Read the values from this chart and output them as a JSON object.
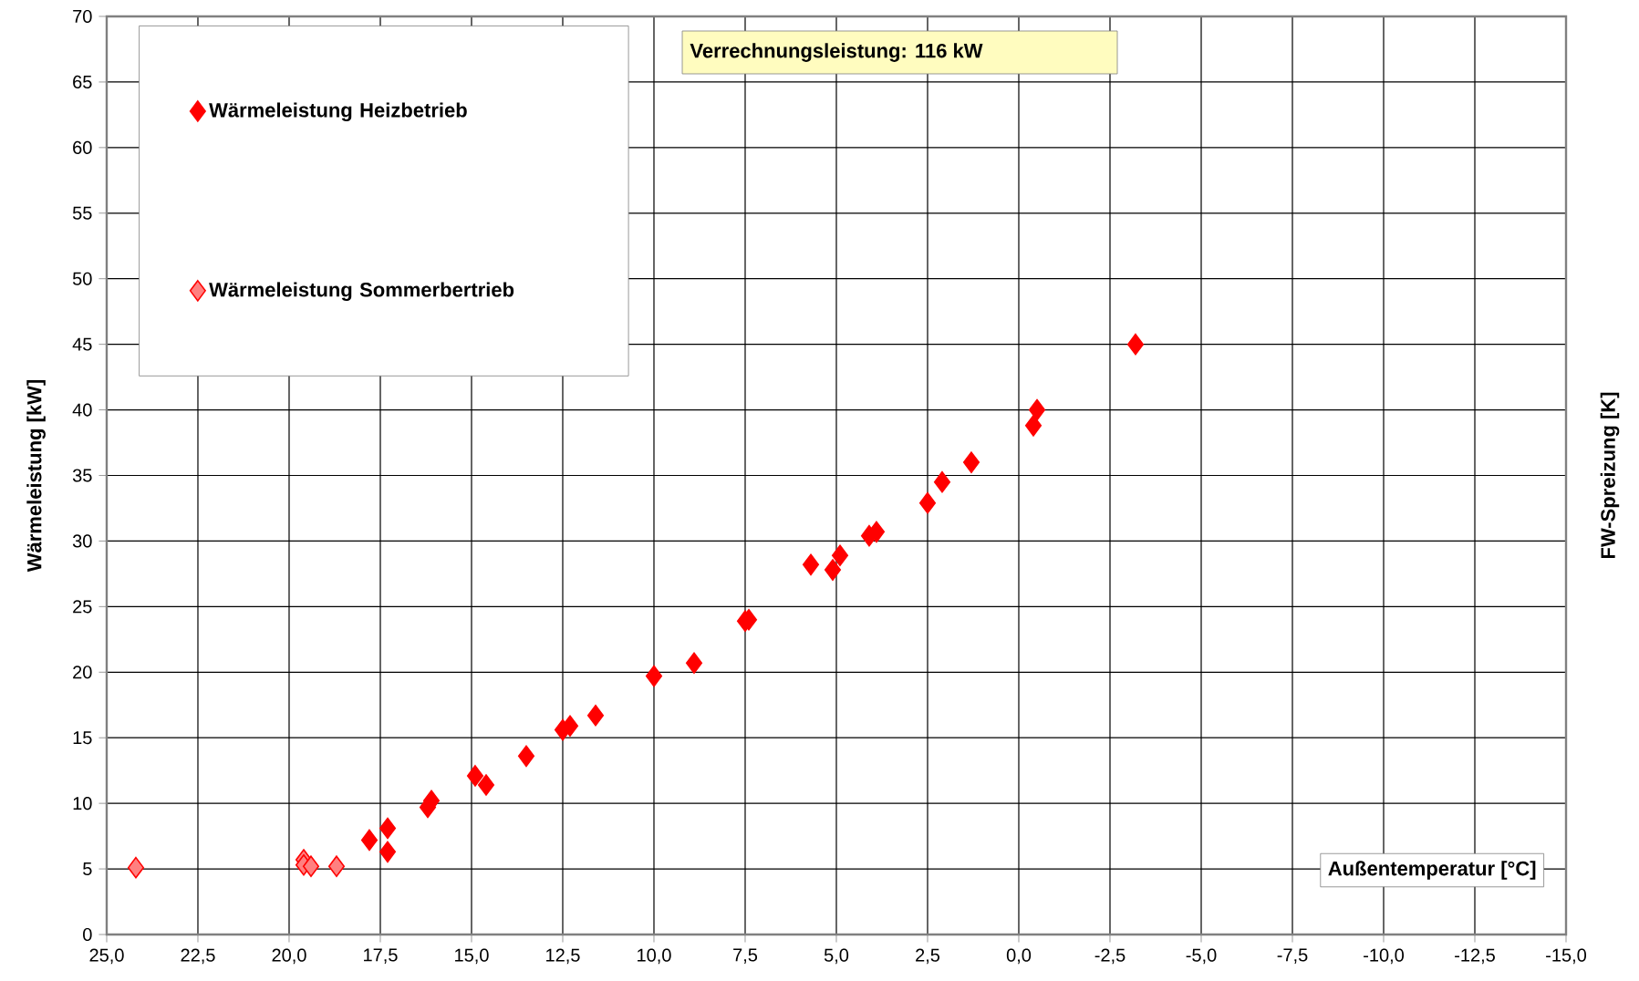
{
  "chart_data": {
    "type": "scatter",
    "xlabel": "Außentemperatur [°C]",
    "ylabel": "Wärmeleistung [kW]",
    "y2label": "FW-Spreizung [K]",
    "annotations": [
      "Verrechnungsleistung:   116 kW"
    ],
    "xlim": [
      25,
      -15
    ],
    "ylim": [
      0,
      70
    ],
    "xticks": [
      {
        "value": 25,
        "label": "25,0"
      },
      {
        "value": 22.5,
        "label": "22,5"
      },
      {
        "value": 20,
        "label": "20,0"
      },
      {
        "value": 17.5,
        "label": "17,5"
      },
      {
        "value": 15,
        "label": "15,0"
      },
      {
        "value": 12.5,
        "label": "12,5"
      },
      {
        "value": 10,
        "label": "10,0"
      },
      {
        "value": 7.5,
        "label": "7,5"
      },
      {
        "value": 5,
        "label": "5,0"
      },
      {
        "value": 2.5,
        "label": "2,5"
      },
      {
        "value": 0,
        "label": "0,0"
      },
      {
        "value": -2.5,
        "label": "-2,5"
      },
      {
        "value": -5,
        "label": "-5,0"
      },
      {
        "value": -7.5,
        "label": "-7,5"
      },
      {
        "value": -10,
        "label": "-10,0"
      },
      {
        "value": -12.5,
        "label": "-12,5"
      },
      {
        "value": -15,
        "label": "-15,0"
      }
    ],
    "yticks": [
      0,
      5,
      10,
      15,
      20,
      25,
      30,
      35,
      40,
      45,
      50,
      55,
      60,
      65,
      70
    ],
    "grid": true,
    "legend": "top left",
    "marker": "diamond",
    "series": [
      {
        "name": "Wärmeleistung Heizbetrieb",
        "color": "#ff0000",
        "x": [
          17.8,
          17.3,
          17.3,
          16.2,
          16.1,
          14.9,
          14.6,
          13.5,
          12.5,
          12.3,
          11.6,
          10.0,
          8.9,
          7.5,
          7.4,
          5.7,
          5.1,
          4.9,
          4.1,
          3.9,
          2.5,
          2.1,
          1.3,
          -0.4,
          -0.5,
          -3.2
        ],
        "values": [
          7.2,
          6.3,
          8.1,
          9.7,
          10.2,
          12.1,
          11.4,
          13.6,
          15.6,
          15.9,
          16.7,
          19.7,
          20.7,
          23.9,
          24.0,
          28.2,
          27.8,
          28.9,
          30.4,
          30.7,
          32.9,
          34.5,
          36.0,
          38.8,
          40.0,
          45.0
        ]
      },
      {
        "name": "Wärmeleistung Sommerbertrieb",
        "color": "#ff8080",
        "x": [
          24.2,
          19.6,
          19.6,
          19.4,
          18.7
        ],
        "values": [
          5.1,
          5.7,
          5.3,
          5.2,
          5.2
        ]
      }
    ]
  }
}
